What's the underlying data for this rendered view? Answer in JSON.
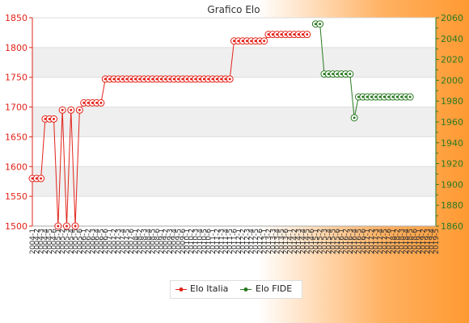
{
  "chart_data": {
    "type": "line",
    "title": "Grafico Elo",
    "xlabel": "",
    "ylabel": "",
    "n_points": 95,
    "x_tick_labels": [
      "2004-1",
      "2004-2",
      "2004-3",
      "2004-4",
      "2004-5",
      "2004-6",
      "2005-1",
      "2005-2",
      "2005-3",
      "2005-4",
      "2005-5",
      "2005-6",
      "2006-1",
      "2006-2",
      "2006-3",
      "2006-4",
      "2006-5",
      "2006-6",
      "2007-1",
      "2007-2",
      "2007-3",
      "2007-4",
      "2007-5",
      "2007-6",
      "2008-1",
      "2008-2",
      "2008-3",
      "2008-4",
      "2008-5",
      "2008-6",
      "2009-1",
      "2009-2",
      "2009-3",
      "2009-4",
      "2009-5",
      "2009-6",
      "2010-1",
      "2010-2",
      "2010-3",
      "2010-4",
      "2010-5",
      "2010-6",
      "2011-1",
      "2011-2",
      "2011-3",
      "2011-4",
      "2011-5",
      "2011-6",
      "2012-1",
      "2012-2",
      "2012-3",
      "2012-4",
      "2012-5",
      "2012-6",
      "2013-1",
      "2013-2",
      "2013-3",
      "2013-4",
      "2013-5",
      "2013-6",
      "2014-1",
      "2014-2",
      "2014-3",
      "2014-4",
      "2014-5",
      "2014-6",
      "2015-1",
      "2015-2",
      "2015-3",
      "2015-4",
      "2015-5",
      "2015-6",
      "2016-1",
      "2016-2",
      "2016-3",
      "2016-4",
      "2016-5",
      "2016-6",
      "2017-1",
      "2017-2",
      "2017-3",
      "2017-4",
      "2017-5",
      "2017-6",
      "2018-1",
      "2018-2",
      "2018-3",
      "2018-4",
      "2018-5",
      "2018-6",
      "2019-1",
      "2019-2",
      "2019-3",
      "2019-4",
      "2019-5"
    ],
    "y_left": {
      "min": 1500,
      "max": 1850,
      "ticks": [
        1500,
        1550,
        1600,
        1650,
        1700,
        1750,
        1800,
        1850
      ],
      "color": "#e2231a"
    },
    "y_right": {
      "min": 1860,
      "max": 2060,
      "ticks": [
        1860,
        1880,
        1900,
        1920,
        1940,
        1960,
        1980,
        2000,
        2020,
        2040,
        2060
      ],
      "color": "#2a7a22"
    },
    "grid": true,
    "legend_position": "bottom",
    "series": [
      {
        "name": "Elo Italia",
        "axis": "left",
        "color": "#e2231a",
        "start_index": 0,
        "values": [
          1580,
          1580,
          1580,
          1680,
          1680,
          1680,
          1500,
          1695,
          1500,
          1695,
          1500,
          1695,
          1707,
          1707,
          1707,
          1707,
          1707,
          1747,
          1747,
          1747,
          1747,
          1747,
          1747,
          1747,
          1747,
          1747,
          1747,
          1747,
          1747,
          1747,
          1747,
          1747,
          1747,
          1747,
          1747,
          1747,
          1747,
          1747,
          1747,
          1747,
          1747,
          1747,
          1747,
          1747,
          1747,
          1747,
          1747,
          1811,
          1811,
          1811,
          1811,
          1811,
          1811,
          1811,
          1811,
          1822,
          1822,
          1822,
          1822,
          1822,
          1822,
          1822,
          1822,
          1822,
          1822
        ]
      },
      {
        "name": "Elo FIDE",
        "axis": "right",
        "color": "#2a7a22",
        "start_index": 66,
        "values": [
          2054,
          2054,
          2006,
          2006,
          2006,
          2006,
          2006,
          2006,
          2006,
          1964,
          1984,
          1984,
          1984,
          1984,
          1984,
          1984,
          1984,
          1984,
          1984,
          1984,
          1984,
          1984,
          1984
        ]
      }
    ]
  }
}
